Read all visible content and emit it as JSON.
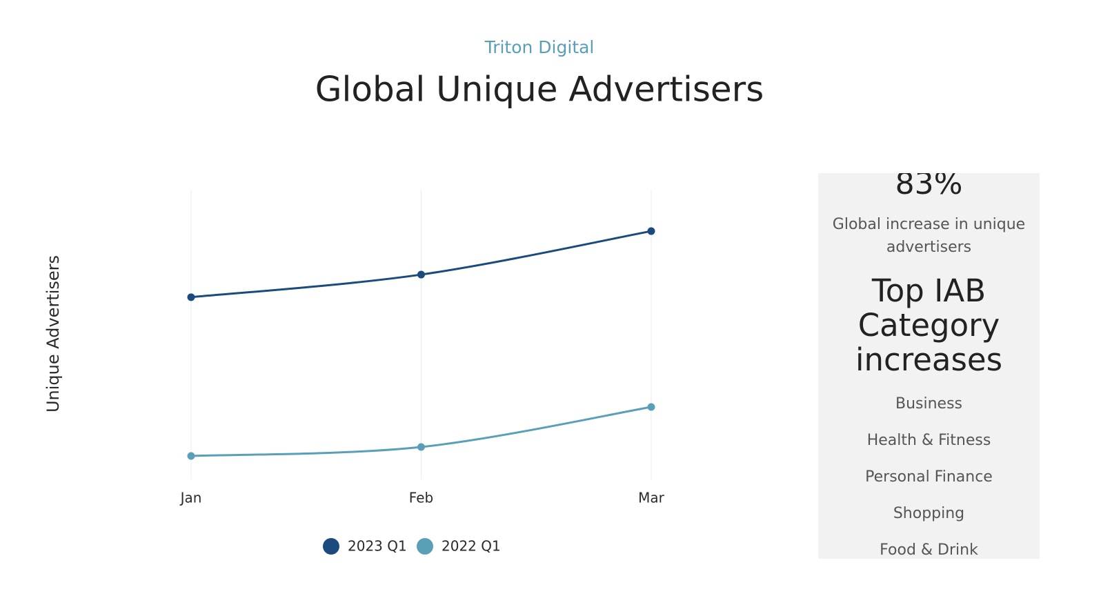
{
  "chart_data": {
    "type": "line",
    "subtitle": "Triton Digital",
    "title": "Global Unique Advertisers",
    "y_label": "Unique Advertisers",
    "categories": [
      "Jan",
      "Feb",
      "Mar"
    ],
    "series": [
      {
        "name": "2023 Q1",
        "color": "#1b4a7e",
        "values": [
          62.9,
          70.7,
          85.7
        ]
      },
      {
        "name": "2022 Q1",
        "color": "#5a9fb8",
        "values": [
          8.1,
          11.2,
          25.0
        ]
      }
    ],
    "ylim": [
      0,
      100
    ],
    "grid": true
  },
  "panel": {
    "stat": "83%",
    "stat_label": "Global increase in unique advertisers",
    "heading": "Top IAB Category increases",
    "categories": [
      "Business",
      "Health & Fitness",
      "Personal Finance",
      "Shopping",
      "Food & Drink"
    ]
  }
}
